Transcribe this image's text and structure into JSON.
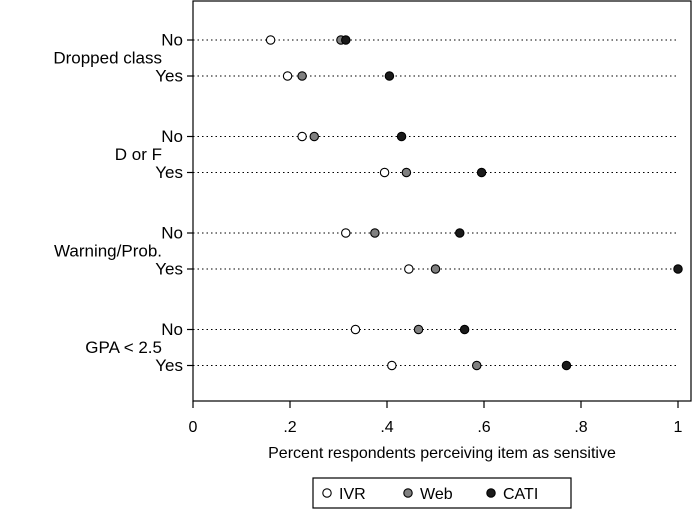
{
  "chart_data": {
    "type": "scatter",
    "title": "",
    "xlabel": "Percent respondents perceiving item as sensitive",
    "xlim": [
      0,
      1
    ],
    "xticks": [
      0,
      0.2,
      0.4,
      0.6,
      0.8,
      1
    ],
    "xtick_labels": [
      "0",
      ".2",
      ".4",
      ".6",
      ".8",
      "1"
    ],
    "grid": "dotted horizontal guide line per row",
    "legend_position": "bottom-center",
    "groups": [
      {
        "label": "Dropped class",
        "rows": [
          "No",
          "Yes"
        ]
      },
      {
        "label": "D or F",
        "rows": [
          "No",
          "Yes"
        ]
      },
      {
        "label": "Warning/Prob.",
        "rows": [
          "No",
          "Yes"
        ]
      },
      {
        "label": "GPA < 2.5",
        "rows": [
          "No",
          "Yes"
        ]
      }
    ],
    "series": [
      {
        "name": "IVR",
        "fill": "#ffffff",
        "values": [
          0.16,
          0.195,
          0.225,
          0.395,
          0.315,
          0.445,
          0.335,
          0.41
        ]
      },
      {
        "name": "Web",
        "fill": "#808080",
        "values": [
          0.305,
          0.225,
          0.25,
          0.44,
          0.375,
          0.5,
          0.465,
          0.585
        ]
      },
      {
        "name": "CATI",
        "fill": "#1a1a1a",
        "values": [
          0.315,
          0.405,
          0.43,
          0.595,
          0.55,
          1.0,
          0.56,
          0.77
        ]
      }
    ]
  }
}
